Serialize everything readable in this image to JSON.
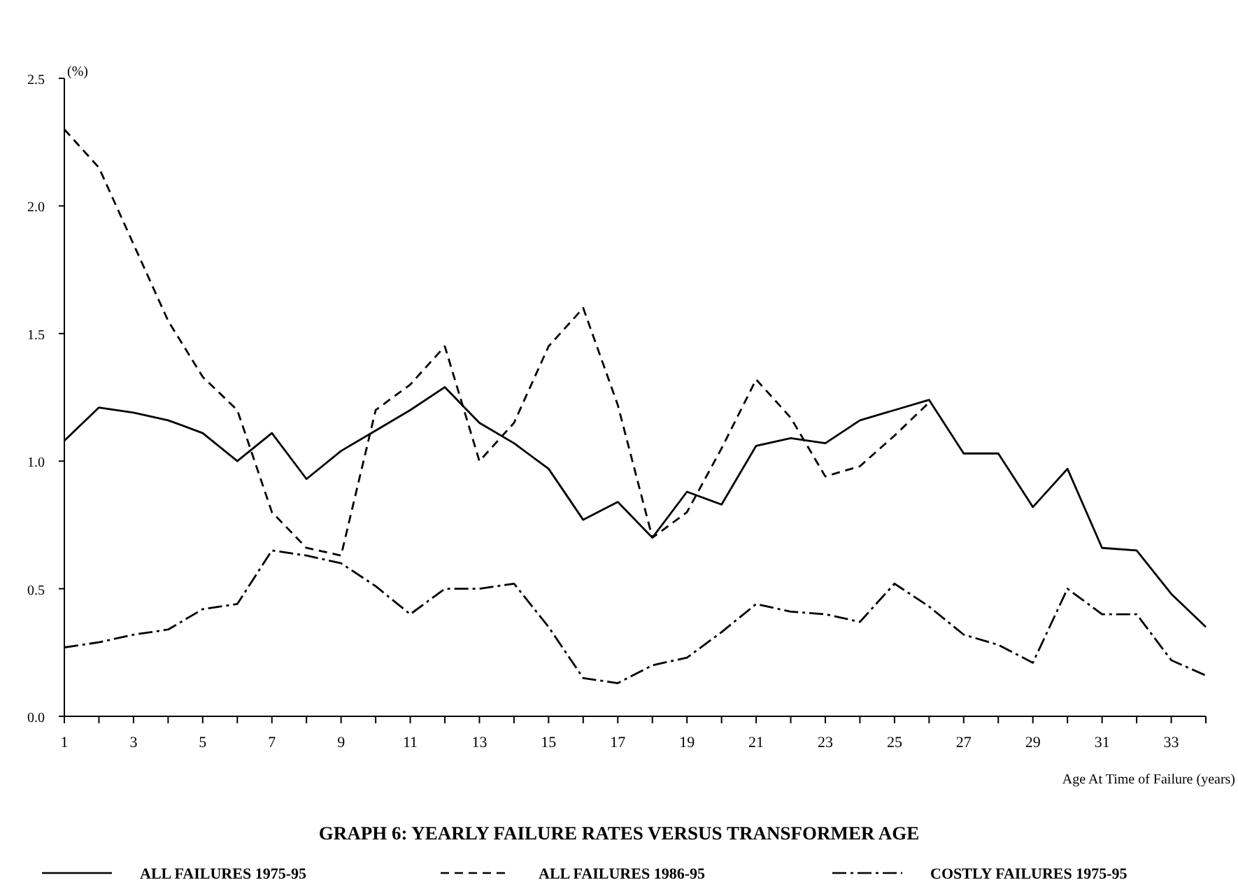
{
  "chart_data": {
    "type": "line",
    "title": "GRAPH 6:  YEARLY FAILURE RATES VERSUS TRANSFORMER AGE",
    "xlabel": "Age At Time of Failure (years)",
    "ylabel": "(%)",
    "x": [
      1,
      2,
      3,
      4,
      5,
      6,
      7,
      8,
      9,
      10,
      11,
      12,
      13,
      14,
      15,
      16,
      17,
      18,
      19,
      20,
      21,
      22,
      23,
      24,
      25,
      26,
      27,
      28,
      29,
      30,
      31,
      32,
      33,
      34
    ],
    "series": [
      {
        "name": "ALL FAILURES 1975-95",
        "color": "#000000",
        "line_style": "solid",
        "values": [
          1.08,
          1.21,
          1.19,
          1.16,
          1.11,
          1.0,
          1.11,
          0.93,
          1.04,
          1.12,
          1.2,
          1.29,
          1.15,
          1.07,
          0.97,
          0.77,
          0.84,
          0.7,
          0.88,
          0.83,
          1.06,
          1.09,
          1.07,
          1.16,
          1.2,
          1.24,
          1.03,
          1.03,
          0.82,
          0.97,
          0.66,
          0.65,
          0.48,
          0.35
        ]
      },
      {
        "name": "ALL FAILURES 1986-95",
        "color": "#000000",
        "line_style": "dashed",
        "values": [
          2.3,
          2.15,
          1.85,
          1.55,
          1.33,
          1.2,
          0.8,
          0.66,
          0.63,
          1.2,
          1.3,
          1.45,
          1.0,
          1.15,
          1.45,
          1.6,
          1.22,
          0.7,
          0.8,
          1.05,
          1.32,
          1.17,
          0.94,
          0.98,
          1.1,
          1.23,
          null,
          null,
          null,
          null,
          null,
          null,
          null,
          null
        ]
      },
      {
        "name": "COSTLY FAILURES 1975-95",
        "color": "#000000",
        "line_style": "dashdot",
        "values": [
          0.27,
          0.29,
          0.32,
          0.34,
          0.42,
          0.44,
          0.65,
          0.63,
          0.6,
          0.51,
          0.4,
          0.5,
          0.5,
          0.52,
          0.35,
          0.15,
          0.13,
          0.2,
          0.23,
          0.33,
          0.44,
          0.41,
          0.4,
          0.37,
          0.52,
          0.43,
          0.32,
          0.28,
          0.21,
          0.5,
          0.4,
          0.4,
          0.22,
          0.16
        ]
      }
    ],
    "xlim": [
      1,
      34
    ],
    "xticks": [
      1,
      {
        "value": 2,
        "label": null
      },
      3,
      {
        "value": 4,
        "label": null
      },
      5,
      {
        "value": 6,
        "label": null
      },
      7,
      {
        "value": 8,
        "label": null
      },
      9,
      {
        "value": 10,
        "label": null
      },
      11,
      {
        "value": 12,
        "label": null
      },
      13,
      {
        "value": 14,
        "label": null
      },
      15,
      {
        "value": 16,
        "label": null
      },
      17,
      {
        "value": 18,
        "label": null
      },
      19,
      {
        "value": 20,
        "label": null
      },
      21,
      {
        "value": 22,
        "label": null
      },
      23,
      {
        "value": 24,
        "label": null
      },
      25,
      {
        "value": 26,
        "label": null
      },
      27,
      {
        "value": 28,
        "label": null
      },
      29,
      {
        "value": 30,
        "label": null
      },
      31,
      {
        "value": 32,
        "label": null
      },
      33,
      {
        "value": 34,
        "label": null
      }
    ],
    "ylim": [
      0,
      2.5
    ],
    "yticks": [
      {
        "value": 0,
        "label": "0.0"
      },
      {
        "value": 0.5,
        "label": "0.5"
      },
      {
        "value": 1,
        "label": "1.0"
      },
      {
        "value": 1.5,
        "label": "1.5"
      },
      {
        "value": 2,
        "label": "2.0"
      },
      {
        "value": 2.5,
        "label": "2.5"
      }
    ],
    "grid": false,
    "legend": "bottom"
  }
}
